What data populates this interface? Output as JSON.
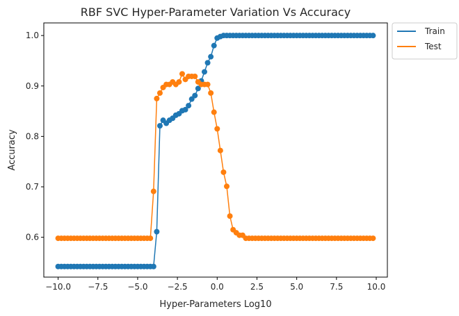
{
  "chart_data": {
    "type": "line",
    "title": "RBF SVC Hyper-Parameter Variation Vs Accuracy",
    "xlabel": "Hyper-Parameters Log10",
    "ylabel": "Accuracy",
    "xlim": [
      -10.9,
      10.7
    ],
    "ylim": [
      0.521,
      1.025
    ],
    "xticks": [
      -10.0,
      -7.5,
      -5.0,
      -2.5,
      0.0,
      2.5,
      5.0,
      7.5,
      10.0
    ],
    "xtick_labels": [
      "−10.0",
      "−7.5",
      "−5.0",
      "−2.5",
      "0.0",
      "2.5",
      "5.0",
      "7.5",
      "10.0"
    ],
    "yticks": [
      0.6,
      0.7,
      0.8,
      0.9,
      1.0
    ],
    "ytick_labels": [
      "0.6",
      "0.7",
      "0.8",
      "0.9",
      "1.0"
    ],
    "legend_position": "outside-top-right",
    "grid": false,
    "markers": true,
    "x_start": -10.0,
    "x_step": 0.2,
    "series": [
      {
        "name": "Train",
        "color": "#1f77b4",
        "values": [
          0.542,
          0.542,
          0.542,
          0.542,
          0.542,
          0.542,
          0.542,
          0.542,
          0.542,
          0.542,
          0.542,
          0.542,
          0.542,
          0.542,
          0.542,
          0.542,
          0.542,
          0.542,
          0.542,
          0.542,
          0.542,
          0.542,
          0.542,
          0.542,
          0.542,
          0.542,
          0.542,
          0.542,
          0.542,
          0.542,
          0.542,
          0.611,
          0.821,
          0.832,
          0.826,
          0.832,
          0.836,
          0.842,
          0.845,
          0.851,
          0.853,
          0.861,
          0.874,
          0.881,
          0.895,
          0.91,
          0.928,
          0.946,
          0.958,
          0.98,
          0.995,
          0.998,
          1.0,
          1.0,
          1.0,
          1.0,
          1.0,
          1.0,
          1.0,
          1.0,
          1.0,
          1.0,
          1.0,
          1.0,
          1.0,
          1.0,
          1.0,
          1.0,
          1.0,
          1.0,
          1.0,
          1.0,
          1.0,
          1.0,
          1.0,
          1.0,
          1.0,
          1.0,
          1.0,
          1.0,
          1.0,
          1.0,
          1.0,
          1.0,
          1.0,
          1.0,
          1.0,
          1.0,
          1.0,
          1.0,
          1.0,
          1.0,
          1.0,
          1.0,
          1.0,
          1.0,
          1.0,
          1.0,
          1.0,
          1.0
        ]
      },
      {
        "name": "Test",
        "color": "#ff7f0e",
        "values": [
          0.598,
          0.598,
          0.598,
          0.598,
          0.598,
          0.598,
          0.598,
          0.598,
          0.598,
          0.598,
          0.598,
          0.598,
          0.598,
          0.598,
          0.598,
          0.598,
          0.598,
          0.598,
          0.598,
          0.598,
          0.598,
          0.598,
          0.598,
          0.598,
          0.598,
          0.598,
          0.598,
          0.598,
          0.598,
          0.598,
          0.691,
          0.875,
          0.886,
          0.897,
          0.903,
          0.903,
          0.908,
          0.903,
          0.908,
          0.924,
          0.913,
          0.919,
          0.919,
          0.919,
          0.908,
          0.903,
          0.903,
          0.903,
          0.886,
          0.848,
          0.815,
          0.772,
          0.729,
          0.701,
          0.642,
          0.615,
          0.609,
          0.604,
          0.604,
          0.598,
          0.598,
          0.598,
          0.598,
          0.598,
          0.598,
          0.598,
          0.598,
          0.598,
          0.598,
          0.598,
          0.598,
          0.598,
          0.598,
          0.598,
          0.598,
          0.598,
          0.598,
          0.598,
          0.598,
          0.598,
          0.598,
          0.598,
          0.598,
          0.598,
          0.598,
          0.598,
          0.598,
          0.598,
          0.598,
          0.598,
          0.598,
          0.598,
          0.598,
          0.598,
          0.598,
          0.598,
          0.598,
          0.598,
          0.598,
          0.598
        ]
      }
    ]
  }
}
